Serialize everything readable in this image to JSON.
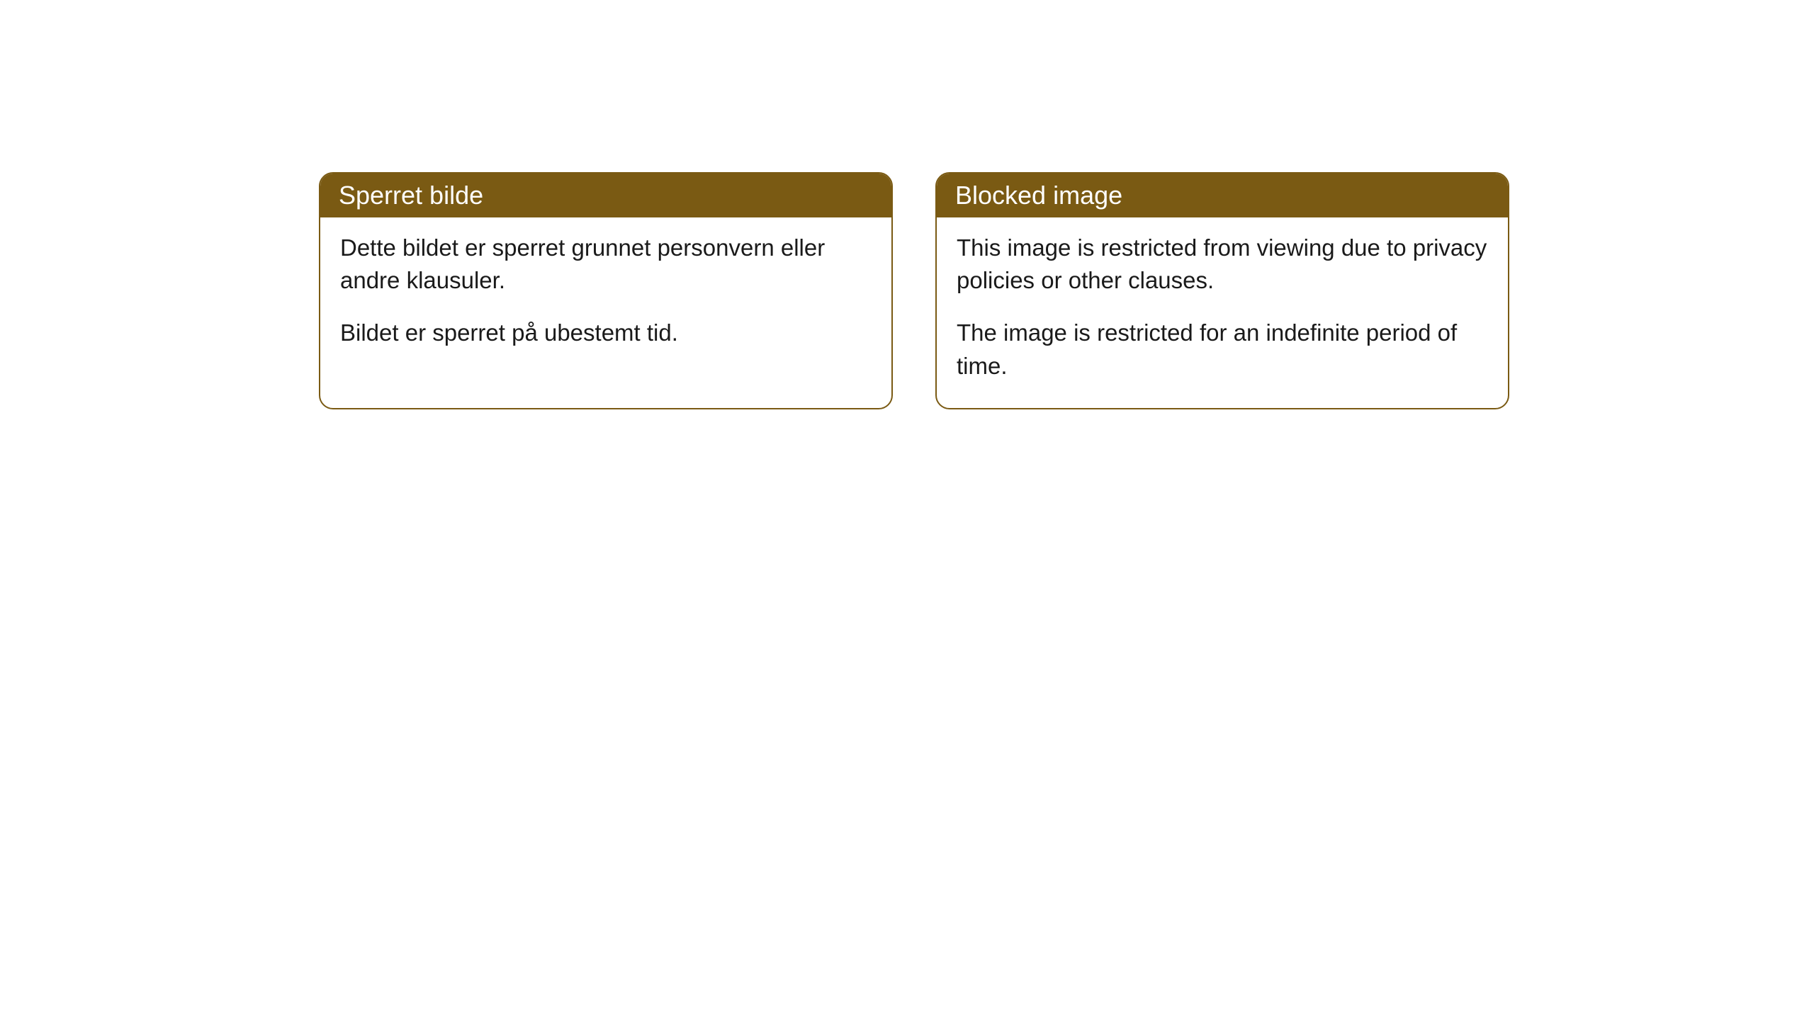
{
  "cards": [
    {
      "title": "Sperret bilde",
      "paragraph1": "Dette bildet er sperret grunnet personvern eller andre klausuler.",
      "paragraph2": "Bildet er sperret på ubestemt tid."
    },
    {
      "title": "Blocked image",
      "paragraph1": "This image is restricted from viewing due to privacy policies or other clauses.",
      "paragraph2": "The image is restricted for an indefinite period of time."
    }
  ],
  "style": {
    "header_background_color": "#7a5a13",
    "header_text_color": "#ffffff",
    "border_color": "#7a5a13",
    "card_background_color": "#ffffff",
    "body_text_color": "#1a1a1a",
    "page_background_color": "#ffffff",
    "border_radius": 20,
    "title_fontsize": 36,
    "body_fontsize": 33
  }
}
